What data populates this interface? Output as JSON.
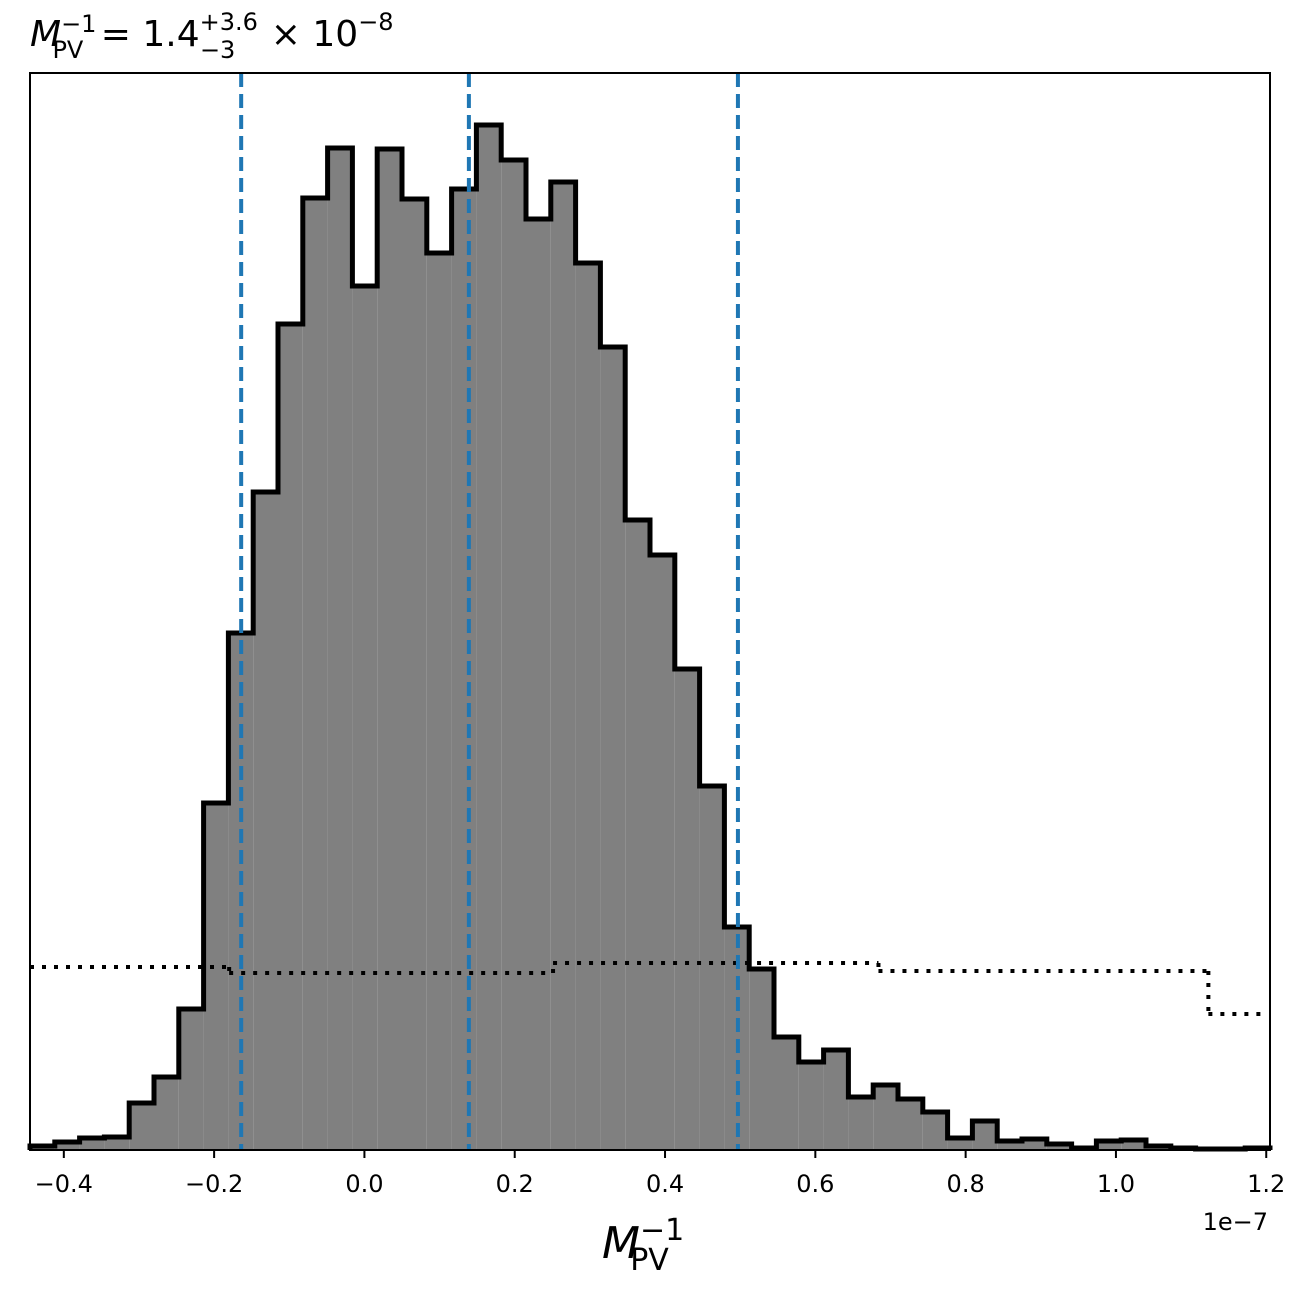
{
  "chart_data": {
    "type": "histogram",
    "title": {
      "symbol": "M",
      "sub": "PV",
      "sup": "−1",
      "rest": " = 1.4",
      "upper": "+3.6",
      "lower": "−3",
      "times": " × 10",
      "exp": "−8"
    },
    "xlabel": {
      "symbol": "M",
      "sub": "PV",
      "sup": "−1"
    },
    "x_offset_label": "1e−7",
    "bins": [
      -0.445,
      -0.412,
      -0.379,
      -0.346,
      -0.313,
      -0.28,
      -0.247,
      -0.214,
      -0.181,
      -0.148,
      -0.115,
      -0.082,
      -0.049,
      -0.016,
      0.017,
      0.05,
      0.083,
      0.116,
      0.149,
      0.182,
      0.215,
      0.248,
      0.281,
      0.314,
      0.347,
      0.38,
      0.413,
      0.446,
      0.479,
      0.512,
      0.545,
      0.578,
      0.611,
      0.644,
      0.677,
      0.71,
      0.743,
      0.776,
      0.809,
      0.842,
      0.875,
      0.908,
      0.941,
      0.974,
      1.007,
      1.04,
      1.073,
      1.106,
      1.139,
      1.172,
      1.205
    ],
    "values": [
      4,
      8,
      12,
      13,
      47,
      73,
      141,
      347,
      517,
      658,
      826,
      952,
      1002,
      864,
      1001,
      951,
      897,
      961,
      1025,
      990,
      931,
      968,
      887,
      803,
      630,
      595,
      481,
      364,
      223,
      181,
      113,
      88,
      100,
      53,
      65,
      51,
      38,
      12,
      29,
      9,
      11,
      6,
      2,
      9,
      10,
      4,
      2,
      1,
      1,
      2
    ],
    "color": "#808080",
    "edgecolor": "#000000",
    "prior": {
      "bins": [
        -0.445,
        -0.18,
        0.251,
        0.684,
        1.123,
        1.195
      ],
      "values": [
        183,
        177,
        187,
        179,
        136
      ],
      "color": "#000000",
      "linestyle": "dotted"
    },
    "vlines": {
      "values": [
        -0.164,
        0.139,
        0.497
      ],
      "color": "#1f77b4",
      "linestyle": "dashed"
    },
    "xlim": [
      -0.445,
      1.205
    ],
    "ylim": [
      0,
      1077
    ],
    "xticks": [
      {
        "value": -0.4,
        "label": "−0.4"
      },
      {
        "value": -0.2,
        "label": "−0.2"
      },
      {
        "value": 0,
        "label": "0.0"
      },
      0.2,
      0.4,
      0.6,
      0.8,
      {
        "value": 1,
        "label": "1.0"
      },
      1.2
    ]
  }
}
